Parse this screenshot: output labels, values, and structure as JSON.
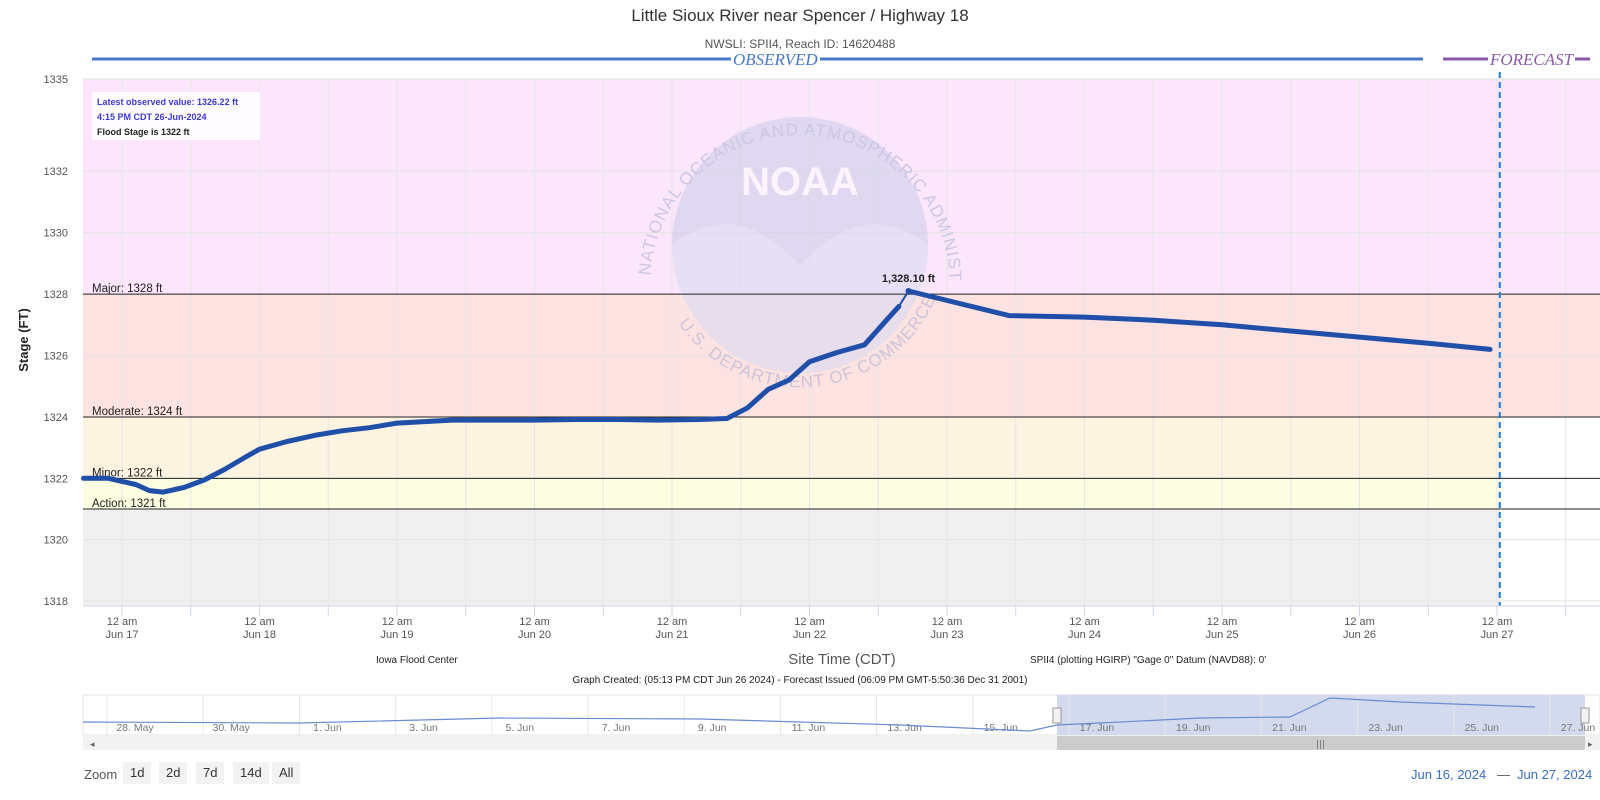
{
  "header": {
    "title": "Little Sioux River near Spencer / Highway 18",
    "subtitle": "NWSLI: SPII4, Reach ID: 14620488",
    "observed_label": "OBSERVED",
    "forecast_label": "FORECAST"
  },
  "info_box": {
    "latest": "Latest observed value: 1326.22 ft",
    "time": "4:15 PM CDT 26-Jun-2024",
    "flood": "Flood Stage is 1322 ft"
  },
  "peak_label": "1,328.10 ft",
  "credits": {
    "left": "Iowa Flood Center",
    "right": "SPII4 (plotting HGIRP) \"Gage 0\" Datum (NAVD88): 0'",
    "created": "Graph Created: (05:13 PM CDT Jun 26 2024) - Forecast Issued (06:09 PM GMT-5:50:36 Dec 31 2001)"
  },
  "watermark": {
    "logo_text": "NOAA",
    "top_arc": "NATIONAL OCEANIC AND ATMOSPHERIC ADMINISTRATION",
    "bottom_arc": "U.S. DEPARTMENT OF COMMERCE"
  },
  "zoom": {
    "label": "Zoom",
    "buttons": [
      "1d",
      "2d",
      "7d",
      "14d",
      "All"
    ]
  },
  "range": {
    "from": "Jun 16, 2024",
    "to": "Jun 27, 2024"
  },
  "navigator": {
    "labels": [
      "28. May",
      "30. May",
      "1. Jun",
      "3. Jun",
      "5. Jun",
      "7. Jun",
      "9. Jun",
      "11. Jun",
      "13. Jun",
      "15. Jun",
      "17. Jun",
      "19. Jun",
      "21. Jun",
      "23. Jun",
      "25. Jun",
      "27. Jun"
    ]
  },
  "colors": {
    "line": "#1f4fa8",
    "major_band": "#fbe6fb",
    "moderate_band": "#fde2e2",
    "minor_band": "#fdf3e1",
    "action_band": "#fdfde2",
    "normal_band": "#f0f0f0",
    "observed_bar": "#4a78c8",
    "forecast_bar": "#8a5aa8"
  },
  "chart_data": {
    "type": "line",
    "ylabel": "Stage (FT)",
    "xlabel": "Site Time (CDT)",
    "ylim": [
      1318,
      1335
    ],
    "y_ticks": [
      1318,
      1320,
      1322,
      1324,
      1326,
      1328,
      1330,
      1332,
      1335
    ],
    "x_ticks": [
      {
        "line1": "12 am",
        "line2": "Jun 17"
      },
      {
        "line1": "12 am",
        "line2": "Jun 18"
      },
      {
        "line1": "12 am",
        "line2": "Jun 19"
      },
      {
        "line1": "12 am",
        "line2": "Jun 20"
      },
      {
        "line1": "12 am",
        "line2": "Jun 21"
      },
      {
        "line1": "12 am",
        "line2": "Jun 22"
      },
      {
        "line1": "12 am",
        "line2": "Jun 23"
      },
      {
        "line1": "12 am",
        "line2": "Jun 24"
      },
      {
        "line1": "12 am",
        "line2": "Jun 25"
      },
      {
        "line1": "12 am",
        "line2": "Jun 26"
      },
      {
        "line1": "12 am",
        "line2": "Jun 27"
      }
    ],
    "thresholds": [
      {
        "label": "Major: 1328 ft",
        "value": 1328
      },
      {
        "label": "Moderate: 1324 ft",
        "value": 1324
      },
      {
        "label": "Minor: 1322 ft",
        "value": 1322
      },
      {
        "label": "Action: 1321 ft",
        "value": 1321
      }
    ],
    "series": [
      {
        "x_units": "days after 12 am Jun 17 (CDT)",
        "points": [
          [
            -0.28,
            1322.0
          ],
          [
            -0.1,
            1322.0
          ],
          [
            0.0,
            1321.9
          ],
          [
            0.1,
            1321.8
          ],
          [
            0.2,
            1321.6
          ],
          [
            0.3,
            1321.55
          ],
          [
            0.45,
            1321.7
          ],
          [
            0.6,
            1321.95
          ],
          [
            0.75,
            1322.3
          ],
          [
            0.9,
            1322.7
          ],
          [
            1.0,
            1322.95
          ],
          [
            1.2,
            1323.2
          ],
          [
            1.4,
            1323.4
          ],
          [
            1.6,
            1323.55
          ],
          [
            1.8,
            1323.65
          ],
          [
            2.0,
            1323.8
          ],
          [
            2.2,
            1323.85
          ],
          [
            2.4,
            1323.9
          ],
          [
            2.7,
            1323.9
          ],
          [
            3.0,
            1323.9
          ],
          [
            3.3,
            1323.92
          ],
          [
            3.6,
            1323.92
          ],
          [
            3.9,
            1323.9
          ],
          [
            4.2,
            1323.92
          ],
          [
            4.4,
            1323.95
          ],
          [
            4.55,
            1324.3
          ],
          [
            4.7,
            1324.9
          ],
          [
            4.85,
            1325.2
          ],
          [
            5.0,
            1325.8
          ],
          [
            5.2,
            1326.1
          ],
          [
            5.4,
            1326.35
          ],
          [
            5.55,
            1327.1
          ],
          [
            5.65,
            1327.6
          ],
          [
            5.72,
            1328.1
          ],
          [
            6.45,
            1327.3
          ],
          [
            7.0,
            1327.25
          ],
          [
            7.5,
            1327.15
          ],
          [
            8.0,
            1327.0
          ],
          [
            8.5,
            1326.8
          ],
          [
            9.0,
            1326.6
          ],
          [
            9.5,
            1326.4
          ],
          [
            9.95,
            1326.2
          ]
        ]
      }
    ],
    "peak": {
      "x": 5.72,
      "y": 1328.1
    },
    "forecast_start_x": 10.02
  }
}
